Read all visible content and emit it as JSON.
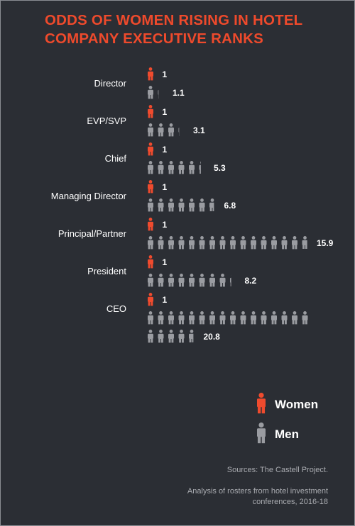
{
  "chart_data": {
    "type": "pictograph",
    "title_lines": [
      "ODDS OF WOMEN RISING IN HOTEL",
      "COMPANY EXECUTIVE RANKS"
    ],
    "categories": [
      "Director",
      "EVP/SVP",
      "Chief",
      "Managing Director",
      "Principal/Partner",
      "President",
      "CEO"
    ],
    "series": [
      {
        "name": "Women",
        "values": [
          1,
          1,
          1,
          1,
          1,
          1,
          1
        ],
        "labels": [
          "1",
          "1",
          "1",
          "1",
          "1",
          "1",
          "1"
        ]
      },
      {
        "name": "Men",
        "values": [
          1.1,
          3.1,
          5.3,
          6.8,
          15.9,
          8.2,
          20.8
        ],
        "labels": [
          "1.1",
          "3.1",
          "5.3",
          "6.8",
          "15.9",
          "8.2",
          "20.8"
        ]
      }
    ],
    "legend": {
      "position": "bottom-right",
      "entries": [
        "Women",
        "Men"
      ]
    },
    "colors": {
      "women": "#ef4b2e",
      "men": "#9a9ca1"
    },
    "sources": "Sources: The Castell Project.",
    "note": "Analysis of rosters from hotel investment conferences, 2016-18"
  }
}
